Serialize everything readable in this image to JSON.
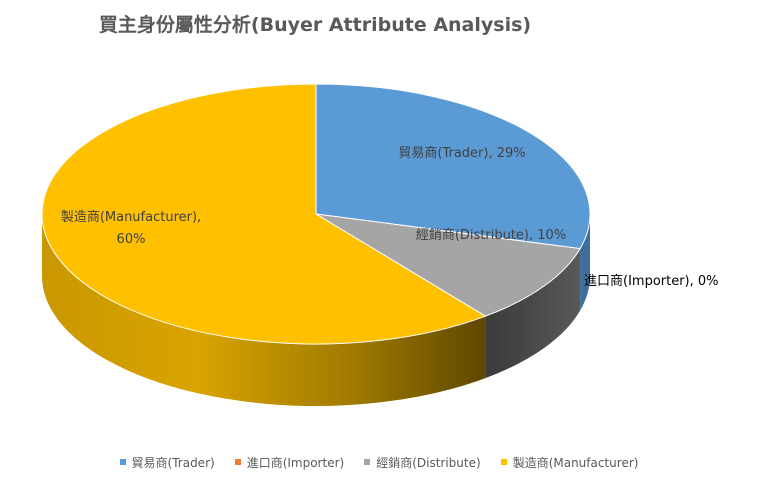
{
  "chart_data": {
    "type": "pie",
    "title": "買主身份屬性分析(Buyer Attribute  Analysis)",
    "three_d": true,
    "slices": [
      {
        "name": "貿易商(Trader)",
        "value": 29,
        "color": "#5B9BD5",
        "label": "貿易商(Trader), 29%"
      },
      {
        "name": "進口商(Importer)",
        "value": 0,
        "color": "#ED7D31",
        "label": "進口商(Importer), 0%"
      },
      {
        "name": "經銷商(Distribute)",
        "value": 10,
        "color": "#A5A5A5",
        "label": "經銷商(Distribute), 10%"
      },
      {
        "name": "製造商(Manufacturer)",
        "value": 60,
        "color": "#FFC000",
        "label_line1": "製造商(Manufacturer),",
        "label_line2": "60%"
      }
    ],
    "legend_position": "bottom"
  }
}
